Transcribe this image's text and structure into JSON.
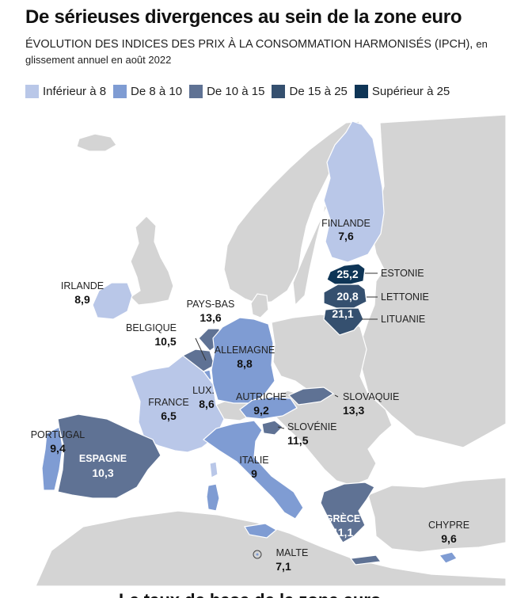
{
  "title": "De sérieuses divergences au sein de la zone euro",
  "subtitle_main": "ÉVOLUTION DES INDICES DES PRIX À LA CONSOMMATION HARMONISÉS (IPCH),",
  "subtitle_small": "en glissement annuel en août 2022",
  "legend": [
    {
      "label": "Inférieur à 8",
      "color": "#b9c7e8"
    },
    {
      "label": "De 8 à 10",
      "color": "#7f9cd3"
    },
    {
      "label": "De 10 à 15",
      "color": "#5f7294"
    },
    {
      "label": "De 15 à 25",
      "color": "#35506f"
    },
    {
      "label": "Supérieur à 25",
      "color": "#0e3556"
    }
  ],
  "colors": {
    "non_euro_land": "#d4d4d4",
    "sea": "#ffffff",
    "borders": "#ffffff"
  },
  "countries": {
    "finlande": {
      "name": "FINLANDE",
      "value": "7,6"
    },
    "estonie": {
      "name": "ESTONIE",
      "value": "25,2"
    },
    "lettonie": {
      "name": "LETTONIE",
      "value": "20,8"
    },
    "lituanie": {
      "name": "LITUANIE",
      "value": "21,1"
    },
    "irlande": {
      "name": "IRLANDE",
      "value": "8,9"
    },
    "pays_bas": {
      "name": "PAYS-BAS",
      "value": "13,6"
    },
    "belgique": {
      "name": "BELGIQUE",
      "value": "10,5"
    },
    "allemagne": {
      "name": "ALLEMAGNE",
      "value": "8,8"
    },
    "lux": {
      "name": "LUX.",
      "value": "8,6"
    },
    "france": {
      "name": "FRANCE",
      "value": "6,5"
    },
    "autriche": {
      "name": "AUTRICHE",
      "value": "9,2"
    },
    "slovaquie": {
      "name": "SLOVAQUIE",
      "value": "13,3"
    },
    "slovenie": {
      "name": "SLOVÉNIE",
      "value": "11,5"
    },
    "portugal": {
      "name": "PORTUGAL",
      "value": "9,4"
    },
    "espagne": {
      "name": "ESPAGNE",
      "value": "10,3"
    },
    "italie": {
      "name": "ITALIE",
      "value": "9"
    },
    "grece": {
      "name": "GRÈCE",
      "value": "11,1"
    },
    "chypre": {
      "name": "CHYPRE",
      "value": "9,6"
    },
    "malte": {
      "name": "MALTE",
      "value": "7,1"
    }
  },
  "footer_cut": "Le taux de base de la zone euro"
}
